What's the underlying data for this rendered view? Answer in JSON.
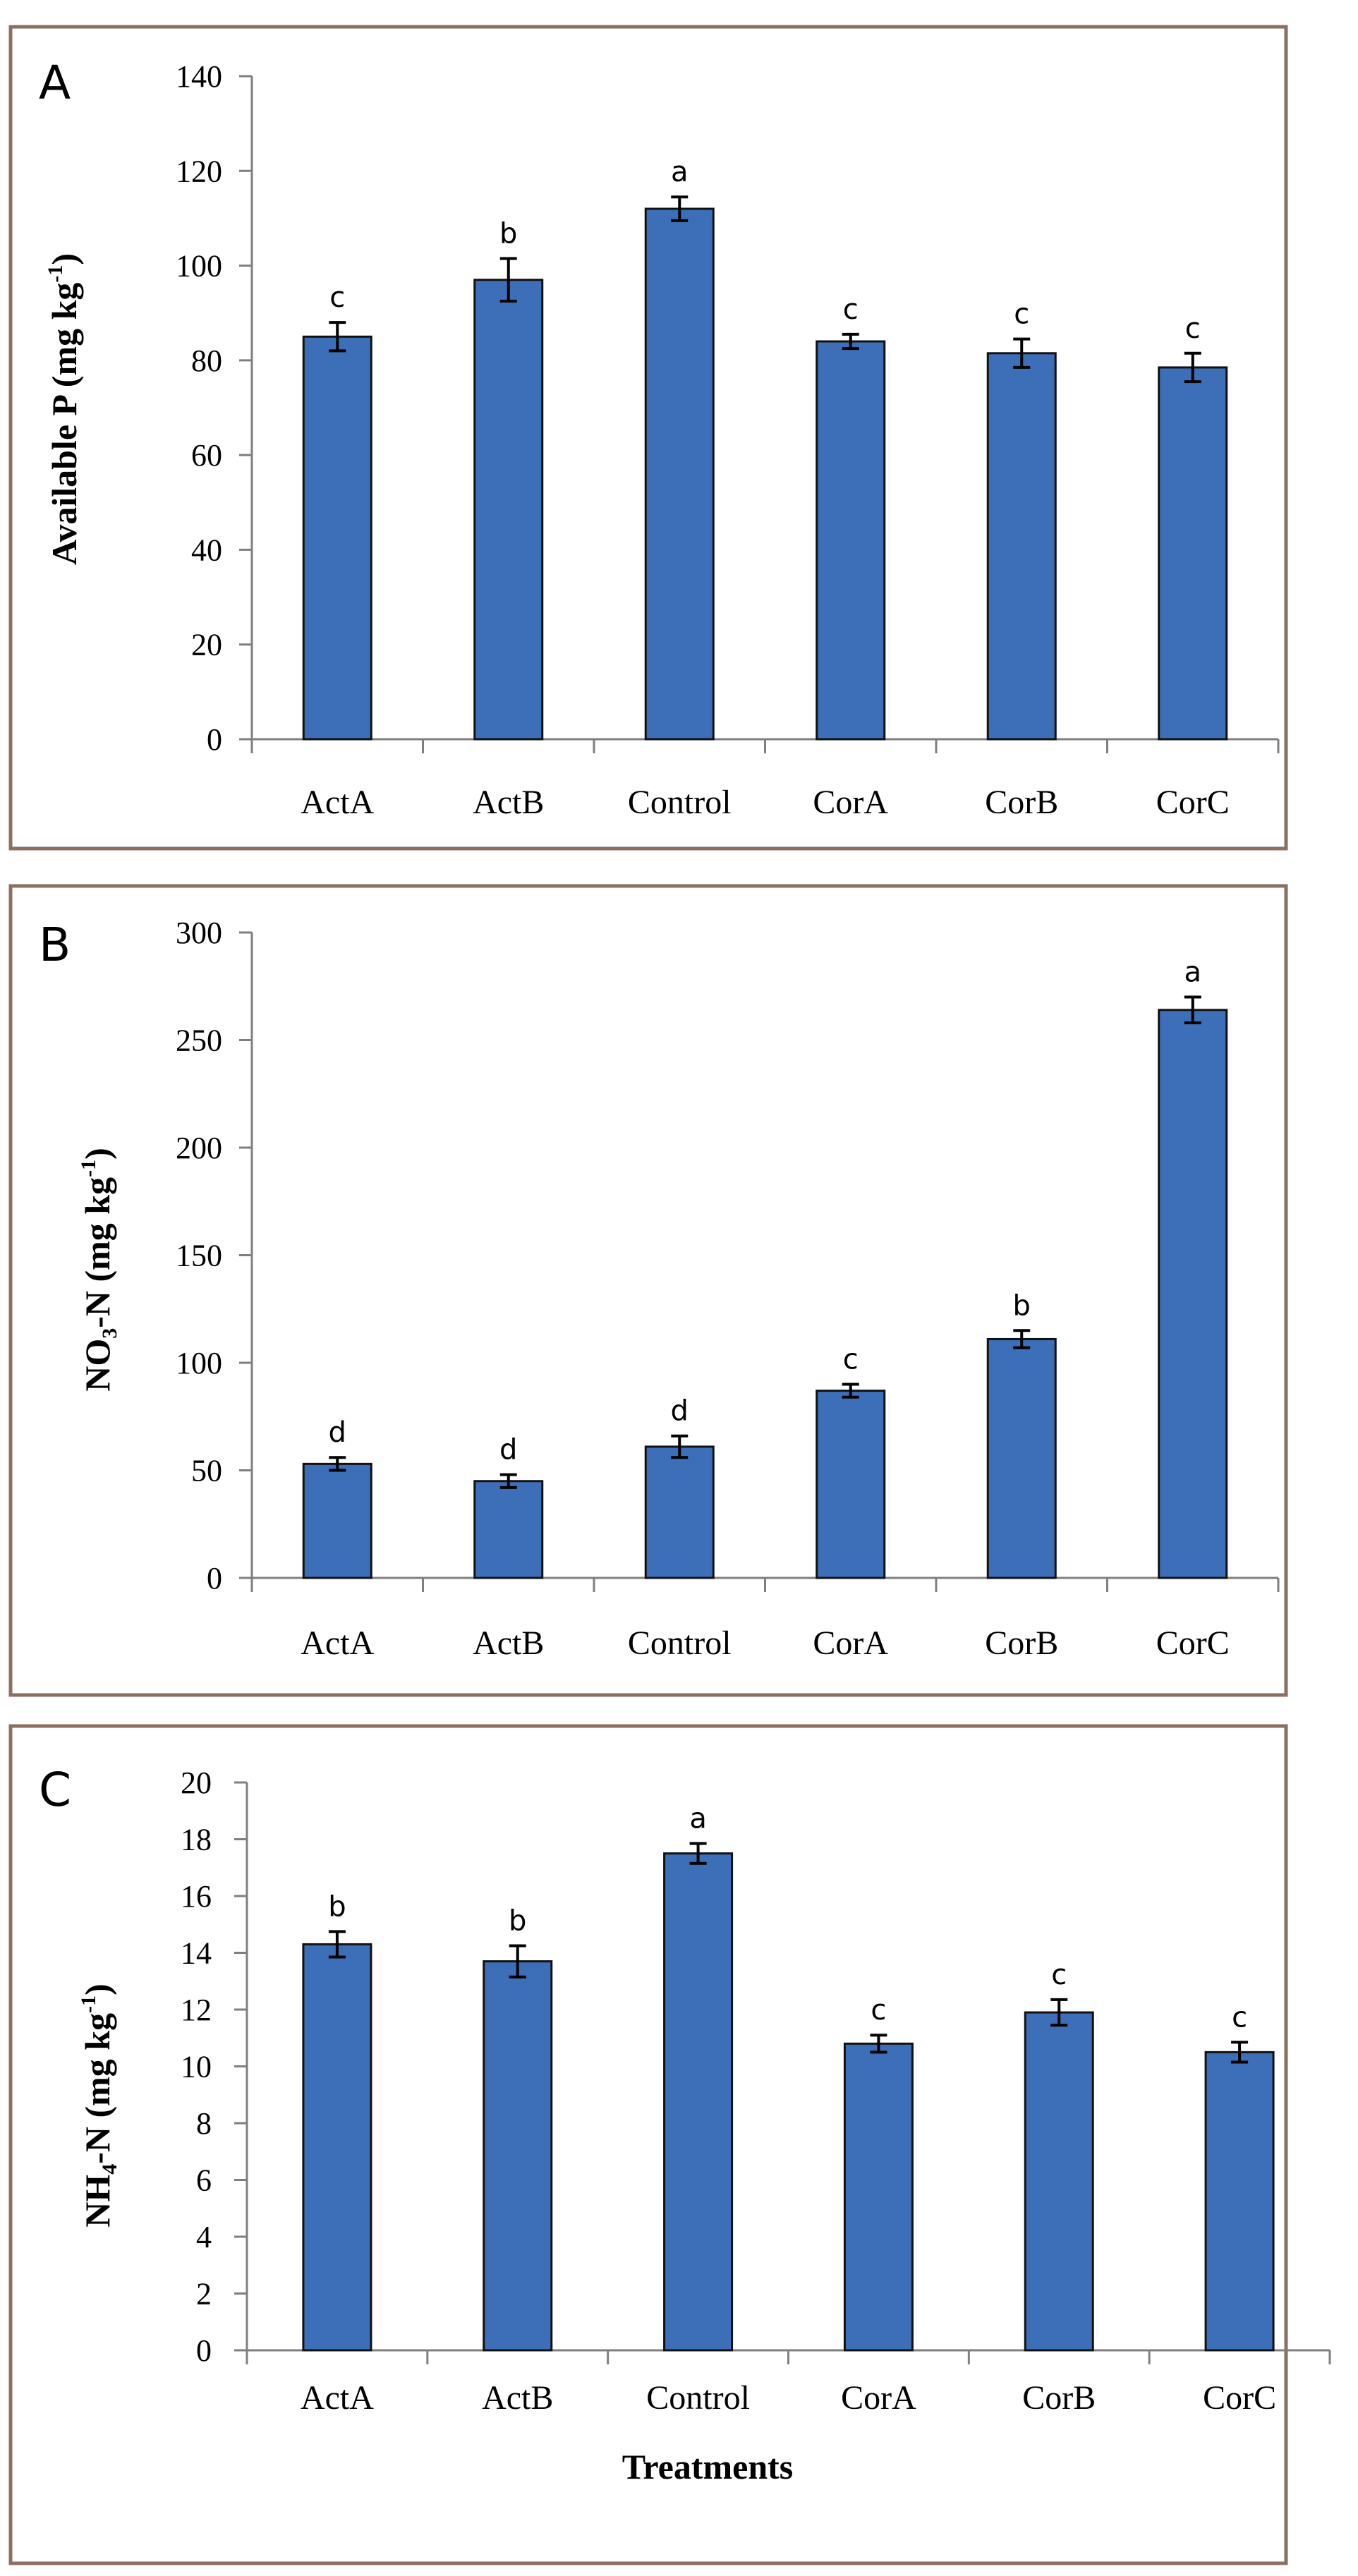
{
  "colors": {
    "bar": "#3d6eb8",
    "bar_edge": "#111111",
    "frame": "#8b6f62",
    "axis": "#7f7f7f",
    "text": "#000000"
  },
  "chart_data": [
    {
      "type": "bar",
      "panel": "A",
      "categories": [
        "ActA",
        "ActB",
        "Control",
        "CorA",
        "CorB",
        "CorC"
      ],
      "values": [
        85,
        97,
        112,
        84,
        81.5,
        78.5
      ],
      "errors": [
        3,
        4.5,
        2.5,
        1.5,
        3,
        3
      ],
      "letters": [
        "c",
        "b",
        "a",
        "c",
        "c",
        "c"
      ],
      "ylabel_main": "Available P (mg kg",
      "ylabel_sup": "-1",
      "ylabel_end": ")",
      "ylabel_sub": "",
      "ylabel_mid": "",
      "ylim": [
        0,
        140
      ],
      "yticks": [
        0,
        20,
        40,
        60,
        80,
        100,
        120,
        140
      ],
      "xlabel": ""
    },
    {
      "type": "bar",
      "panel": "B",
      "categories": [
        "ActA",
        "ActB",
        "Control",
        "CorA",
        "CorB",
        "CorC"
      ],
      "values": [
        53,
        45,
        61,
        87,
        111,
        264
      ],
      "errors": [
        3,
        3,
        5,
        3,
        4,
        6
      ],
      "letters": [
        "d",
        "d",
        "d",
        "c",
        "b",
        "a"
      ],
      "ylabel_main": "NO",
      "ylabel_sub": "3",
      "ylabel_mid": "-N (mg kg",
      "ylabel_sup": "-1",
      "ylabel_end": ")",
      "ylim": [
        0,
        300
      ],
      "yticks": [
        0,
        50,
        100,
        150,
        200,
        250,
        300
      ],
      "xlabel": ""
    },
    {
      "type": "bar",
      "panel": "C",
      "categories": [
        "ActA",
        "ActB",
        "Control",
        "CorA",
        "CorB",
        "CorC"
      ],
      "values": [
        14.3,
        13.7,
        17.5,
        10.8,
        11.9,
        10.5
      ],
      "errors": [
        0.45,
        0.55,
        0.35,
        0.3,
        0.45,
        0.35
      ],
      "letters": [
        "b",
        "b",
        "a",
        "c",
        "c",
        "c"
      ],
      "ylabel_main": "NH",
      "ylabel_sub": "4",
      "ylabel_mid": "-N (mg kg",
      "ylabel_sup": "-1",
      "ylabel_end": ")",
      "ylim": [
        0,
        20
      ],
      "yticks": [
        0,
        2,
        4,
        6,
        8,
        10,
        12,
        14,
        16,
        18,
        20
      ],
      "xlabel": "Treatments"
    }
  ]
}
